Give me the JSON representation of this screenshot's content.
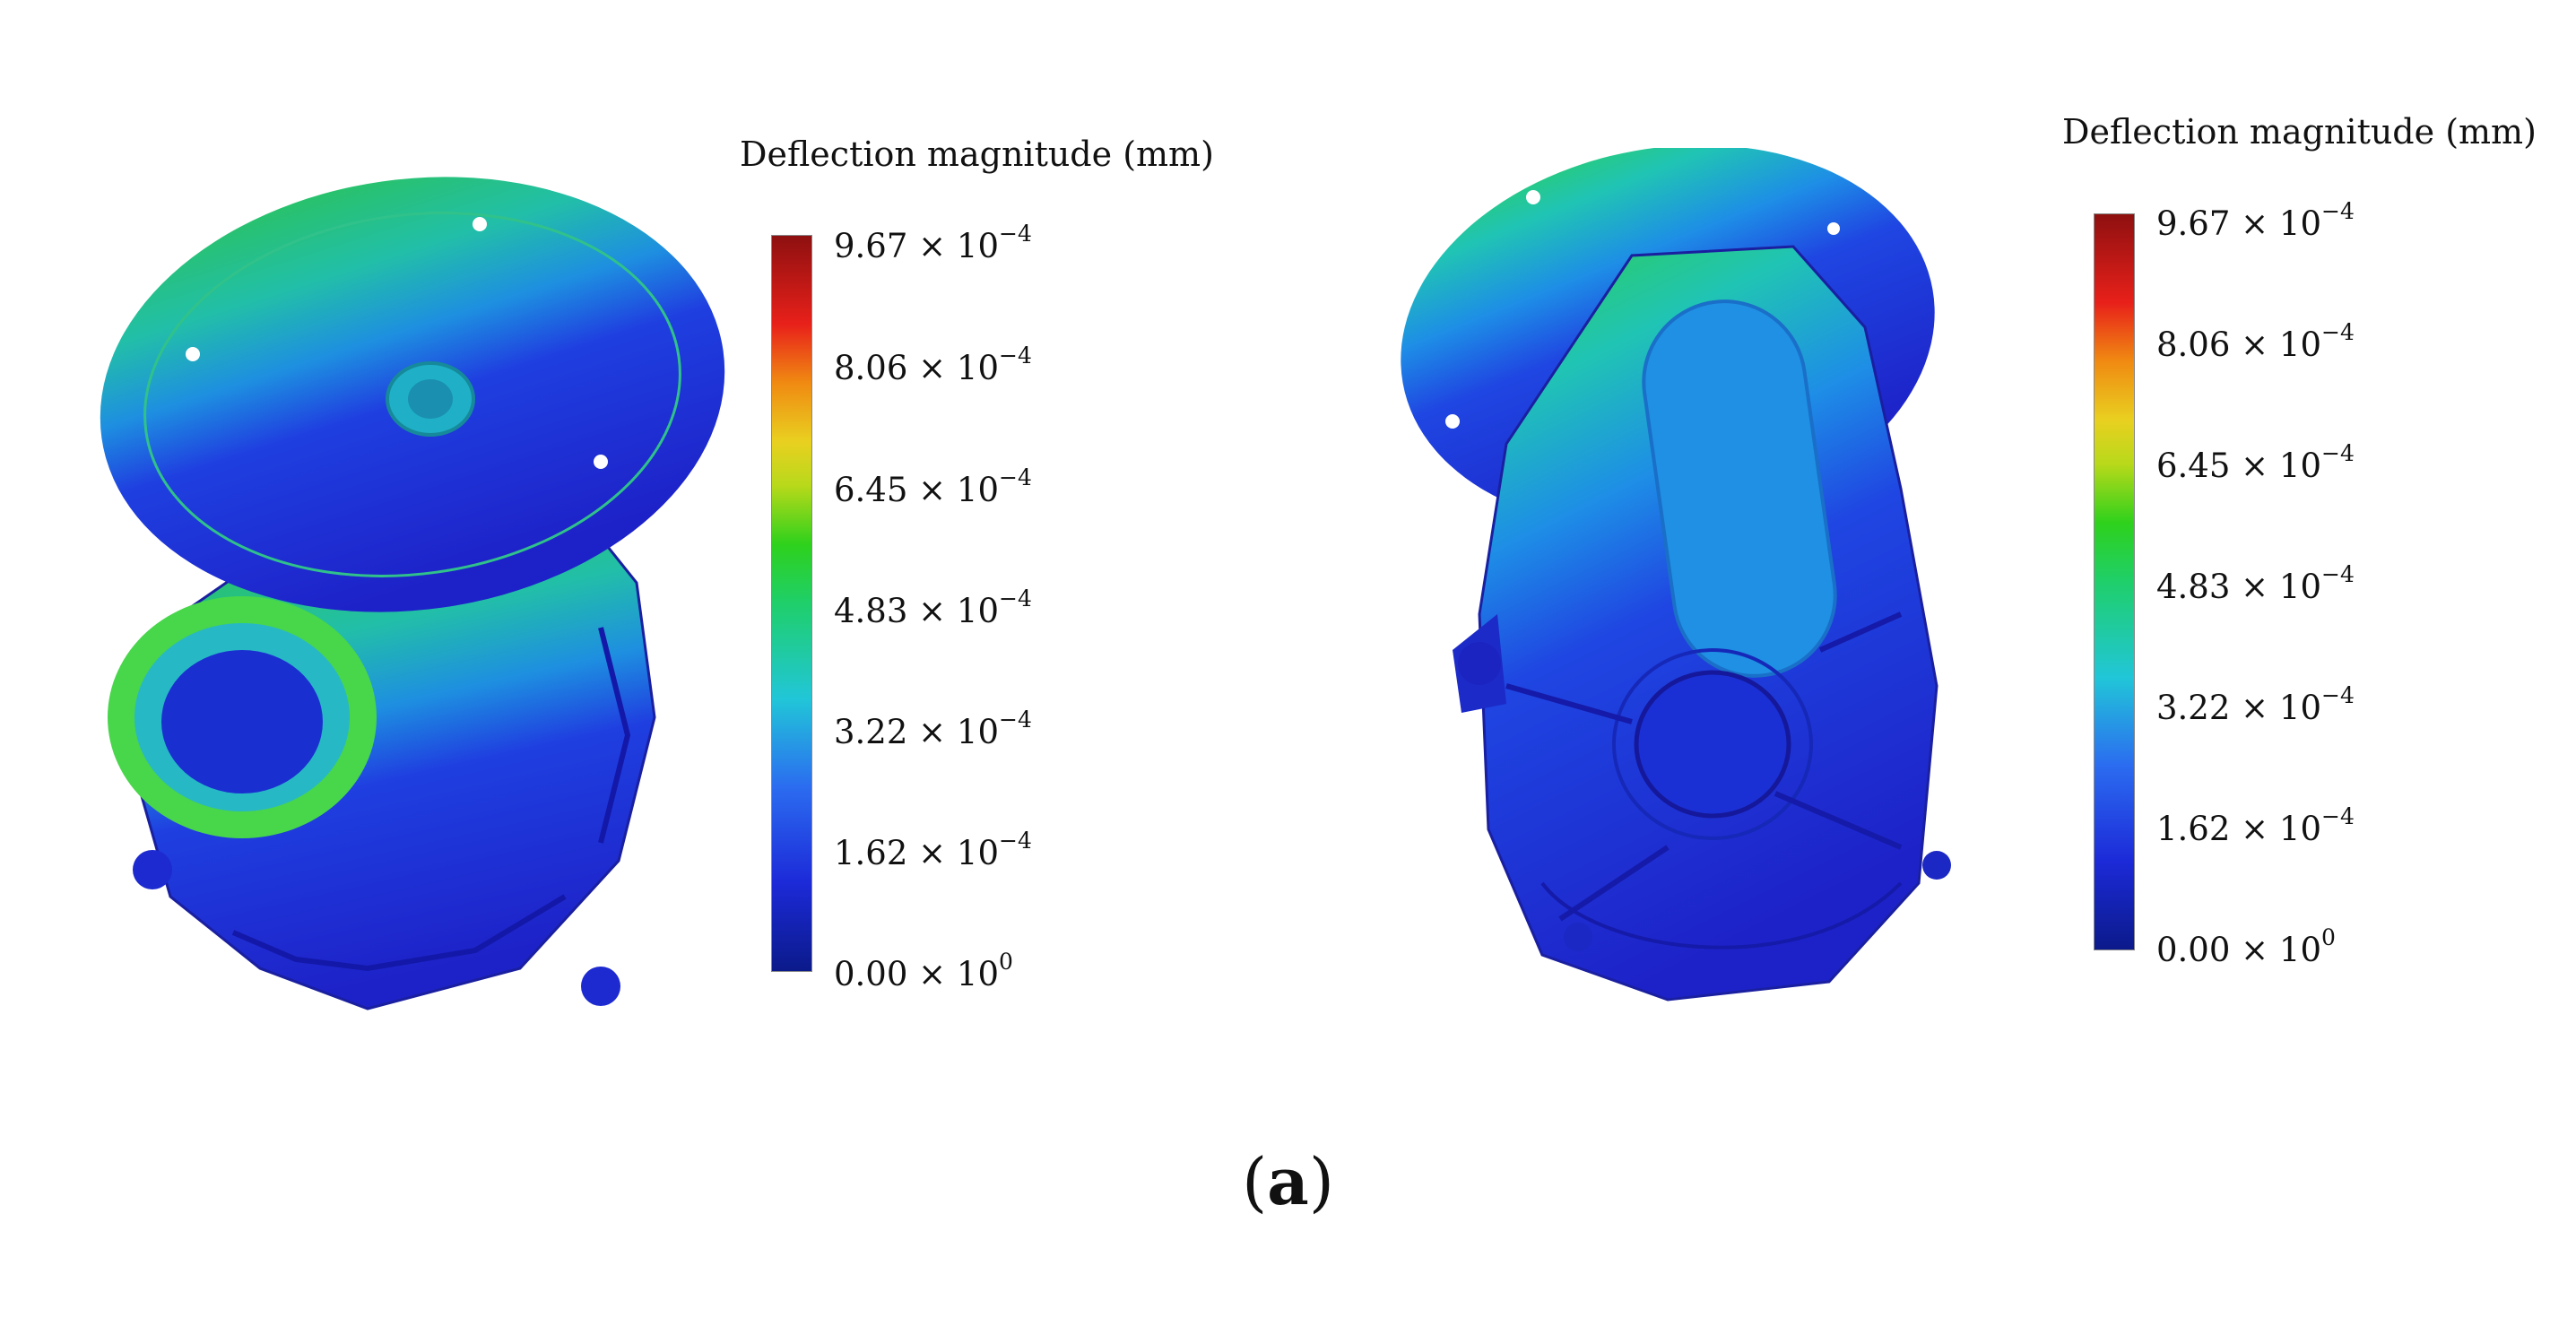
{
  "figure": {
    "caption_label": "a",
    "panels": [
      {
        "legend_title": "Deflection magnitude  (mm)",
        "ticks": [
          {
            "mantissa": "9.67 × 10",
            "exponent": "−4"
          },
          {
            "mantissa": "8.06 × 10",
            "exponent": "−4"
          },
          {
            "mantissa": "6.45 × 10",
            "exponent": "−4"
          },
          {
            "mantissa": "4.83 × 10",
            "exponent": "−4"
          },
          {
            "mantissa": "3.22 × 10",
            "exponent": "−4"
          },
          {
            "mantissa": "1.62 × 10",
            "exponent": "−4"
          },
          {
            "mantissa": "0.00 × 10",
            "exponent": "0"
          }
        ]
      },
      {
        "legend_title": "Deflection magnitude  (mm)",
        "ticks": [
          {
            "mantissa": "9.67 × 10",
            "exponent": "−4"
          },
          {
            "mantissa": "8.06 × 10",
            "exponent": "−4"
          },
          {
            "mantissa": "6.45 × 10",
            "exponent": "−4"
          },
          {
            "mantissa": "4.83 × 10",
            "exponent": "−4"
          },
          {
            "mantissa": "3.22 × 10",
            "exponent": "−4"
          },
          {
            "mantissa": "1.62 × 10",
            "exponent": "−4"
          },
          {
            "mantissa": "0.00 × 10",
            "exponent": "0"
          }
        ]
      }
    ]
  }
}
